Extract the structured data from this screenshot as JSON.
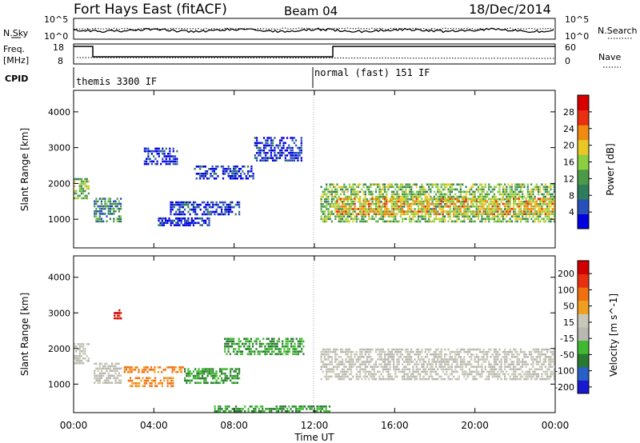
{
  "header": {
    "station": "Fort Hays East (fitACF)",
    "beam": "Beam 04",
    "date": "18/Dec/2014"
  },
  "noise_panel": {
    "left_label": "N.Sky",
    "left_ticks": [
      "10^5",
      "10^0"
    ],
    "right_ticks": [
      "10^5",
      "10^0"
    ],
    "right_label": "N.Search"
  },
  "freq_panel": {
    "left_label_1": "Freq.",
    "left_label_2": "[MHz]",
    "left_ticks": [
      "18",
      "8"
    ],
    "right_ticks": [
      "60",
      "0"
    ],
    "right_label": "Nave"
  },
  "cpid_panel": {
    "label": "CPID",
    "modes": [
      {
        "name": "themis 3300 IF",
        "start_hour": 0
      },
      {
        "name": "normal (fast) 151 IF",
        "start_hour": 12
      }
    ]
  },
  "x_axis": {
    "label": "Time UT",
    "ticks": [
      "00:00",
      "04:00",
      "08:00",
      "12:00",
      "16:00",
      "20:00",
      "00:00"
    ],
    "range_hours": [
      0,
      24
    ]
  },
  "colors": {
    "power_scale": [
      "#0000e0",
      "#2850b8",
      "#2e7d5a",
      "#4c9a48",
      "#8ccf40",
      "#e8c822",
      "#f08a10",
      "#e83010",
      "#d80000"
    ],
    "velocity_scale": [
      "#1818d0",
      "#2860c8",
      "#287a30",
      "#40b830",
      "#b8b8b0",
      "#c8c8b8",
      "#f0a020",
      "#f07010",
      "#e83010",
      "#d00000"
    ]
  },
  "chart_data": [
    {
      "type": "heatmap",
      "title": "",
      "xlabel": "Time UT",
      "ylabel": "Slant Range [km]",
      "xlim": [
        0,
        24
      ],
      "ylim": [
        200,
        4600
      ],
      "y_ticks": [
        "1000",
        "2000",
        "3000",
        "4000"
      ],
      "colorbar": {
        "label": "Power [dB]",
        "ticks": [
          "4",
          "8",
          "12",
          "16",
          "20",
          "24",
          "28"
        ],
        "range": [
          0,
          30
        ]
      },
      "regions": [
        {
          "t0": 0.0,
          "t1": 0.8,
          "r0": 1550,
          "r1": 2150,
          "level": 0.45
        },
        {
          "t0": 1.0,
          "t1": 2.4,
          "r0": 900,
          "r1": 1600,
          "level": 0.3
        },
        {
          "t0": 3.5,
          "t1": 5.2,
          "r0": 2500,
          "r1": 3000,
          "level": 0.1
        },
        {
          "t0": 4.8,
          "t1": 8.3,
          "r0": 1100,
          "r1": 1500,
          "level": 0.12
        },
        {
          "t0": 4.2,
          "t1": 6.8,
          "r0": 800,
          "r1": 1050,
          "level": 0.1
        },
        {
          "t0": 6.0,
          "t1": 9.0,
          "r0": 2100,
          "r1": 2500,
          "level": 0.1
        },
        {
          "t0": 9.0,
          "t1": 11.4,
          "r0": 2600,
          "r1": 3300,
          "level": 0.1
        },
        {
          "t0": 12.3,
          "t1": 24.0,
          "r0": 900,
          "r1": 2000,
          "level": 0.45
        },
        {
          "t0": 13.0,
          "t1": 24.0,
          "r0": 1100,
          "r1": 1600,
          "level": 0.65
        }
      ]
    },
    {
      "type": "heatmap",
      "title": "",
      "xlabel": "Time UT",
      "ylabel": "Slant Range [km]",
      "xlim": [
        0,
        24
      ],
      "ylim": [
        200,
        4600
      ],
      "y_ticks": [
        "1000",
        "2000",
        "3000",
        "4000"
      ],
      "colorbar": {
        "label": "Velocity [m s^-1]",
        "ticks": [
          "200",
          "100",
          "50",
          "15",
          "-15",
          "-50",
          "-100",
          "-200"
        ],
        "range": [
          -250,
          250
        ]
      },
      "regions": [
        {
          "t0": 0.0,
          "t1": 0.8,
          "r0": 1550,
          "r1": 2150,
          "level": 0.5
        },
        {
          "t0": 1.0,
          "t1": 2.4,
          "r0": 1000,
          "r1": 1600,
          "level": 0.5
        },
        {
          "t0": 2.0,
          "t1": 2.4,
          "r0": 2800,
          "r1": 3100,
          "level": 0.93
        },
        {
          "t0": 2.5,
          "t1": 5.5,
          "r0": 1300,
          "r1": 1500,
          "level": 0.72
        },
        {
          "t0": 2.7,
          "t1": 5.0,
          "r0": 900,
          "r1": 1200,
          "level": 0.72
        },
        {
          "t0": 5.5,
          "t1": 8.3,
          "r0": 1000,
          "r1": 1450,
          "level": 0.3
        },
        {
          "t0": 7.5,
          "t1": 11.5,
          "r0": 1800,
          "r1": 2300,
          "level": 0.3
        },
        {
          "t0": 7.0,
          "t1": 12.8,
          "r0": 200,
          "r1": 400,
          "level": 0.3
        },
        {
          "t0": 12.3,
          "t1": 24.0,
          "r0": 1100,
          "r1": 2000,
          "level": 0.5
        }
      ]
    }
  ]
}
